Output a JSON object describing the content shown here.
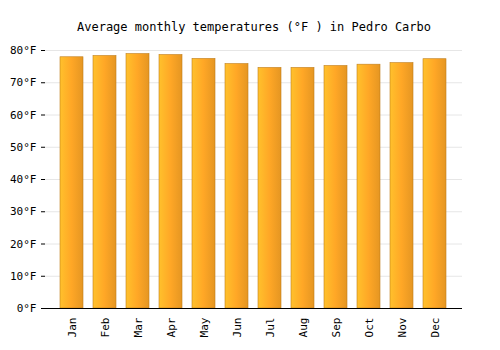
{
  "chart_data": {
    "type": "bar",
    "title": "Average monthly temperatures (°F ) in Pedro Carbo",
    "categories": [
      "Jan",
      "Feb",
      "Mar",
      "Apr",
      "May",
      "Jun",
      "Jul",
      "Aug",
      "Sep",
      "Oct",
      "Nov",
      "Dec"
    ],
    "values": [
      77.9,
      78.3,
      78.9,
      78.6,
      77.4,
      75.8,
      74.6,
      74.6,
      75.2,
      75.6,
      76.1,
      77.3
    ],
    "color": "#ffa726",
    "ylim": [
      0,
      80
    ],
    "yticks": [
      {
        "value": 0,
        "label": "0°F"
      },
      {
        "value": 10,
        "label": "10°F"
      },
      {
        "value": 20,
        "label": "20°F"
      },
      {
        "value": 30,
        "label": "30°F"
      },
      {
        "value": 40,
        "label": "40°F"
      },
      {
        "value": 50,
        "label": "50°F"
      },
      {
        "value": 60,
        "label": "60°F"
      },
      {
        "value": 70,
        "label": "70°F"
      },
      {
        "value": 80,
        "label": "80°F"
      }
    ],
    "grid": true
  }
}
